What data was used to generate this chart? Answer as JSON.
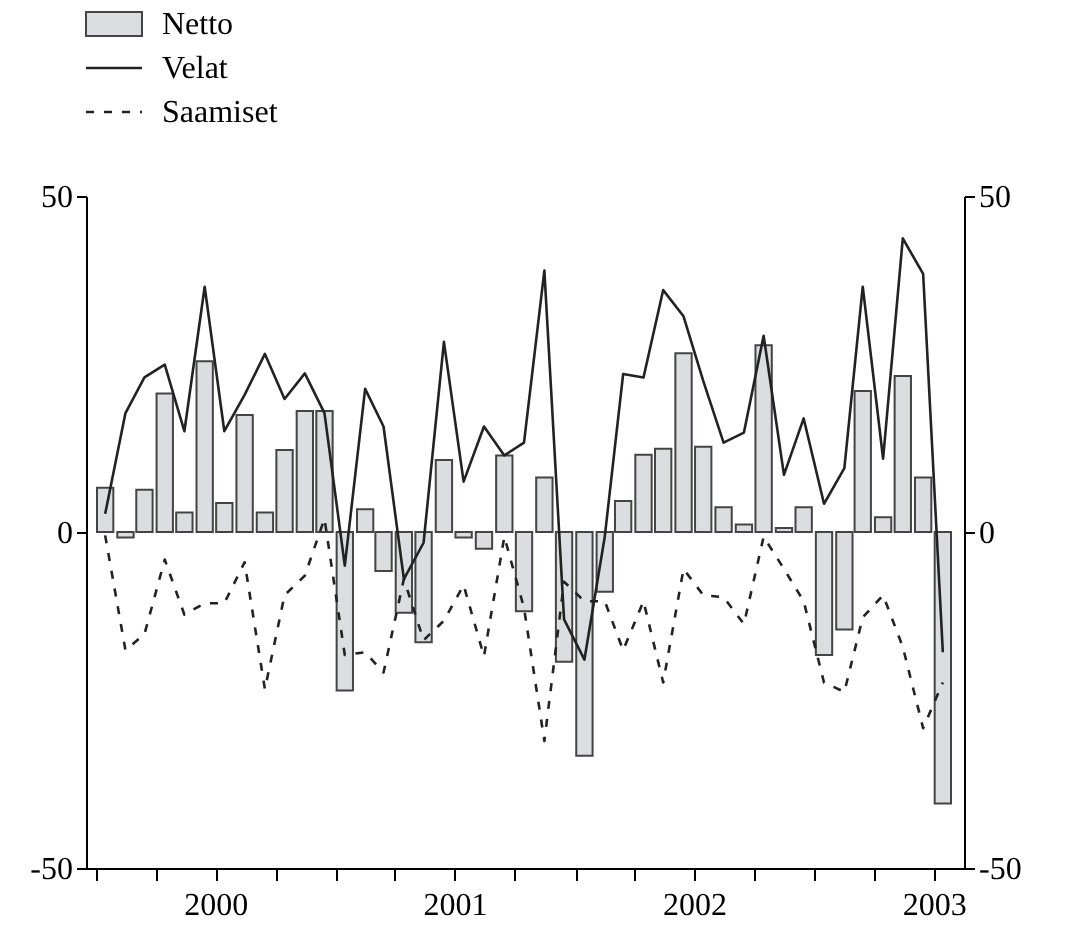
{
  "chart_data": {
    "type": "bar",
    "legend": "top left",
    "grid": false,
    "x": [
      "2000-01-15",
      "2000-02-15",
      "2000-03-15",
      "2000-04-15",
      "2000-05-15",
      "2000-06-15",
      "2000-07-15",
      "2000-08-15",
      "2000-09-15",
      "2000-10-15",
      "2000-11-15",
      "2000-12-15",
      "2001-01-15",
      "2001-02-15",
      "2001-03-15",
      "2001-04-15",
      "2001-05-15",
      "2001-06-15",
      "2001-07-15",
      "2001-08-15",
      "2001-09-15",
      "2001-10-15",
      "2001-11-15",
      "2001-12-15",
      "2002-01-15",
      "2002-02-15",
      "2002-03-15",
      "2002-04-15",
      "2002-05-15",
      "2002-06-15",
      "2002-07-15",
      "2002-08-15",
      "2002-09-15",
      "2002-10-15",
      "2002-11-15",
      "2002-12-15",
      "2003-01-15",
      "2003-02-15",
      "2003-03-15",
      "2003-04-15",
      "2003-05-15",
      "2003-06-15",
      "2003-07-15"
    ],
    "xlim": [
      "2000-01-01",
      "2003-08-01"
    ],
    "xticks": [
      {
        "value": "2000-01-01",
        "label": null
      },
      {
        "value": "2000-04-01",
        "label": null
      },
      {
        "value": "2000-07-01",
        "label": "2000"
      },
      {
        "value": "2000-10-01",
        "label": null
      },
      {
        "value": "2001-01-01",
        "label": null
      },
      {
        "value": "2001-04-01",
        "label": null
      },
      {
        "value": "2001-07-01",
        "label": "2001"
      },
      {
        "value": "2001-10-01",
        "label": null
      },
      {
        "value": "2002-01-01",
        "label": null
      },
      {
        "value": "2002-04-01",
        "label": null
      },
      {
        "value": "2002-07-01",
        "label": "2002"
      },
      {
        "value": "2002-10-01",
        "label": null
      },
      {
        "value": "2003-01-01",
        "label": null
      },
      {
        "value": "2003-04-01",
        "label": null
      },
      {
        "value": "2003-07-01",
        "label": "2003"
      }
    ],
    "ylim": [
      -50,
      50
    ],
    "yticks": [
      -50,
      0,
      50
    ],
    "y2lim": [
      -50,
      50
    ],
    "y2ticks": [
      -50,
      0,
      50
    ],
    "series": [
      {
        "name": "Netto",
        "color": "#dcdde0",
        "values": [
          6.6,
          -0.8,
          6.3,
          20.6,
          2.9,
          25.4,
          4.3,
          17.4,
          2.9,
          12.2,
          18.0,
          18.0,
          -23.6,
          3.4,
          -5.8,
          -12.0,
          -16.4,
          10.7,
          -0.8,
          -2.5,
          11.4,
          -11.8,
          8.1,
          -19.3,
          -33.3,
          -8.9,
          4.6,
          11.5,
          12.4,
          26.6,
          12.7,
          3.7,
          1.1,
          27.8,
          0.6,
          3.7,
          -18.3,
          -14.5,
          21.0,
          2.2,
          23.2,
          8.1,
          -40.4
        ]
      },
      {
        "name": "Velat",
        "type": "line",
        "color": "#222222",
        "line_style": "solid",
        "values": [
          2.7,
          17.7,
          23.0,
          24.9,
          15.0,
          36.5,
          15.0,
          20.4,
          26.5,
          19.8,
          23.6,
          17.7,
          -5.0,
          21.3,
          15.7,
          -7.0,
          -1.6,
          28.3,
          7.5,
          15.7,
          11.4,
          13.3,
          38.9,
          -13.0,
          -19.0,
          -0.7,
          23.5,
          23.0,
          36.0,
          32.1,
          22.5,
          13.3,
          14.8,
          29.2,
          8.5,
          16.9,
          4.2,
          9.5,
          36.5,
          10.9,
          43.7,
          38.4,
          -17.9
        ]
      },
      {
        "name": "Saamiset",
        "type": "line",
        "color": "#222222",
        "line_style": "dashed",
        "values": [
          -0.5,
          -17.6,
          -15.2,
          -4.1,
          -12.3,
          -10.6,
          -10.6,
          -4.5,
          -23.4,
          -9.4,
          -6.5,
          2.0,
          -18.3,
          -17.9,
          -20.9,
          -7.0,
          -16.1,
          -13.2,
          -7.9,
          -18.5,
          -0.7,
          -11.3,
          -31.1,
          -7.4,
          -10.3,
          -10.3,
          -17.6,
          -10.3,
          -22.4,
          -5.5,
          -9.4,
          -9.7,
          -13.7,
          -0.7,
          -5.5,
          -10.3,
          -22.4,
          -23.8,
          -12.7,
          -9.4,
          -17.1,
          -29.2,
          -22.4
        ]
      }
    ]
  }
}
